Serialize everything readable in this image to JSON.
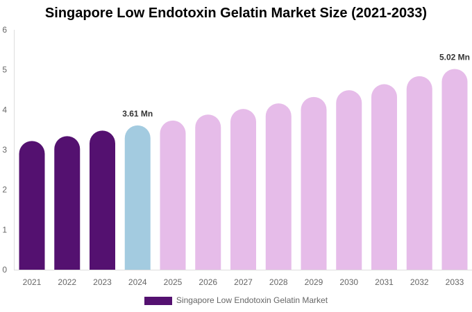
{
  "chart_data": {
    "type": "bar",
    "title": "Singapore Low Endotoxin Gelatin Market Size (2021-2033)",
    "categories": [
      "2021",
      "2022",
      "2023",
      "2024",
      "2025",
      "2026",
      "2027",
      "2028",
      "2029",
      "2030",
      "2031",
      "2032",
      "2033"
    ],
    "series": [
      {
        "name": "Singapore Low Endotoxin Gelatin Market",
        "values": [
          3.22,
          3.34,
          3.48,
          3.61,
          3.73,
          3.88,
          4.02,
          4.16,
          4.32,
          4.49,
          4.64,
          4.84,
          5.02
        ]
      }
    ],
    "data_labels": {
      "2024": "3.61 Mn",
      "2033": "5.02 Mn"
    },
    "ylim": [
      0,
      6
    ],
    "yticks": [
      "0",
      "1",
      "2",
      "3",
      "4",
      "5",
      "6"
    ],
    "grid": false,
    "legend_position": "bottom",
    "colors": {
      "historical": "#541170",
      "current": "#a3cbe0",
      "forecast": "#e6bce9"
    },
    "color_groups": [
      "historical",
      "historical",
      "historical",
      "current",
      "forecast",
      "forecast",
      "forecast",
      "forecast",
      "forecast",
      "forecast",
      "forecast",
      "forecast",
      "forecast"
    ]
  }
}
